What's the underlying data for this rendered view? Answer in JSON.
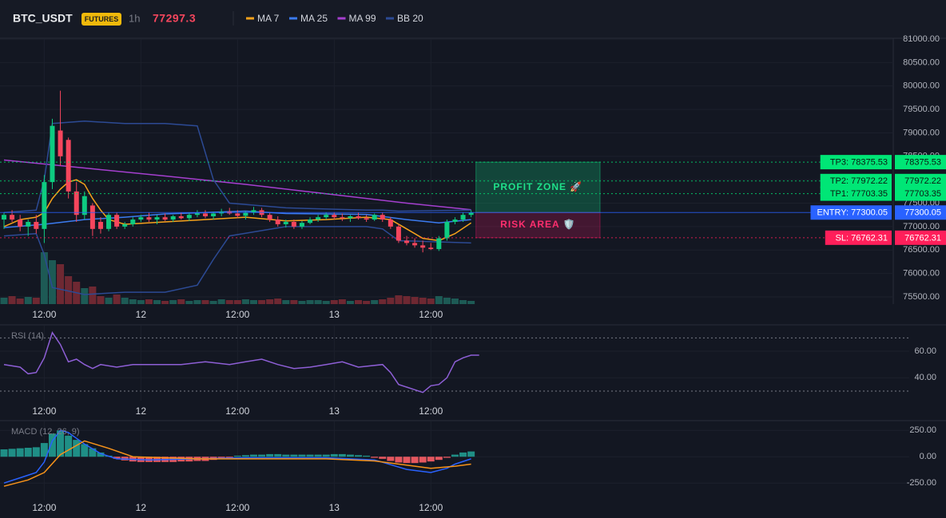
{
  "header": {
    "symbol": "BTC_USDT",
    "badge": "FUTURES",
    "interval": "1h",
    "price": 77297.3
  },
  "chart_data": [
    {
      "type": "candlestick",
      "open": [
        77150,
        77250,
        77150,
        77000,
        77100,
        76950,
        77950,
        79050,
        78850,
        77750,
        77250,
        77450,
        77100,
        76950,
        77250,
        77000,
        77050,
        77150,
        77200,
        77150,
        77200,
        77150,
        77220,
        77180,
        77250,
        77280,
        77220,
        77280,
        77320,
        77280,
        77230,
        77300,
        77350,
        77250,
        77150,
        77050,
        77100,
        77000,
        77080,
        77150,
        77200,
        77250,
        77200,
        77180,
        77220,
        77180,
        77150,
        77250,
        77150,
        77000,
        76700,
        76650,
        76600,
        76550,
        76520,
        76750,
        77100,
        77150,
        77250
      ],
      "high": [
        77300,
        77350,
        77250,
        77150,
        77250,
        78100,
        79300,
        79900,
        78900,
        77950,
        77750,
        77500,
        77200,
        77300,
        77300,
        77100,
        77200,
        77250,
        77300,
        77250,
        77280,
        77250,
        77300,
        77300,
        77350,
        77350,
        77320,
        77380,
        77400,
        77350,
        77330,
        77420,
        77400,
        77300,
        77220,
        77150,
        77150,
        77120,
        77200,
        77250,
        77300,
        77300,
        77280,
        77250,
        77300,
        77250,
        77280,
        77300,
        77200,
        77050,
        76800,
        76750,
        76700,
        76650,
        76800,
        77150,
        77200,
        77300,
        77350
      ],
      "low": [
        76950,
        77100,
        76900,
        76800,
        76850,
        76650,
        77800,
        78300,
        77600,
        77100,
        77150,
        76800,
        76850,
        76900,
        76950,
        76950,
        77000,
        77100,
        77100,
        77050,
        77120,
        77100,
        77150,
        77120,
        77200,
        77180,
        77150,
        77220,
        77250,
        77180,
        77150,
        77250,
        77200,
        77100,
        77000,
        76980,
        76950,
        76950,
        77050,
        77100,
        77150,
        77150,
        77120,
        77100,
        77150,
        77100,
        77120,
        77100,
        76950,
        76650,
        76600,
        76550,
        76450,
        76500,
        76480,
        76700,
        77050,
        77100,
        77200
      ],
      "close": [
        77250,
        77150,
        77000,
        77100,
        76950,
        77950,
        79150,
        78500,
        77750,
        77250,
        77650,
        76950,
        76950,
        77250,
        77000,
        77050,
        77150,
        77200,
        77150,
        77200,
        77150,
        77220,
        77180,
        77250,
        77280,
        77220,
        77280,
        77320,
        77280,
        77230,
        77300,
        77350,
        77250,
        77150,
        77050,
        77100,
        77000,
        77080,
        77150,
        77200,
        77250,
        77200,
        77180,
        77220,
        77180,
        77150,
        77250,
        77150,
        77000,
        76700,
        76650,
        76600,
        76550,
        76520,
        76750,
        77100,
        77150,
        77250,
        77297.3
      ],
      "volume": [
        8,
        10,
        7,
        9,
        8,
        65,
        55,
        50,
        35,
        28,
        20,
        22,
        10,
        8,
        12,
        8,
        6,
        5,
        6,
        5,
        4,
        5,
        6,
        4,
        5,
        5,
        4,
        6,
        5,
        5,
        6,
        5,
        5,
        6,
        7,
        5,
        5,
        4,
        5,
        5,
        4,
        5,
        6,
        4,
        5,
        4,
        5,
        6,
        8,
        11,
        10,
        9,
        8,
        7,
        10,
        8,
        7,
        5,
        4
      ],
      "colors": {
        "up": "#0ecb81",
        "down": "#f6465d",
        "volume_up": "#1d5a55",
        "volume_down": "#6e2832"
      },
      "series": [
        {
          "name": "MA 7",
          "color": "#f7a21b",
          "x": [
            0,
            2,
            4,
            5,
            6,
            7,
            8,
            9,
            10,
            11,
            12,
            13,
            15,
            20,
            25,
            30,
            35,
            40,
            45,
            48,
            50,
            52,
            54,
            56,
            58
          ],
          "values": [
            77000,
            77150,
            77200,
            77300,
            77600,
            77800,
            77950,
            78000,
            77900,
            77600,
            77350,
            77150,
            77050,
            77100,
            77150,
            77200,
            77120,
            77150,
            77200,
            77150,
            76950,
            76750,
            76700,
            76850,
            77080
          ]
        },
        {
          "name": "MA 25",
          "color": "#3b7bf0",
          "x": [
            0,
            5,
            10,
            15,
            20,
            25,
            30,
            35,
            40,
            45,
            50,
            54,
            58
          ],
          "values": [
            76980,
            77050,
            77150,
            77200,
            77270,
            77300,
            77330,
            77280,
            77270,
            77260,
            77150,
            77080,
            77150
          ]
        },
        {
          "name": "MA 99",
          "color": "#a53fcf",
          "x": [
            0,
            10,
            20,
            30,
            40,
            50,
            58
          ],
          "values": [
            78420,
            78250,
            78080,
            77900,
            77700,
            77500,
            77360
          ]
        },
        {
          "name": "BB 20",
          "color": "#2c4a94",
          "x": [
            0,
            4,
            5,
            6,
            10,
            15,
            20,
            24,
            26,
            28,
            35,
            45,
            47,
            49,
            58
          ],
          "values": [
            77300,
            77350,
            78000,
            79200,
            79250,
            79200,
            79200,
            79150,
            78000,
            77500,
            77400,
            77350,
            77350,
            77330,
            77350
          ],
          "lower": [
            76800,
            76850,
            76400,
            75700,
            75550,
            75600,
            75600,
            75750,
            76300,
            76800,
            77000,
            77000,
            76950,
            76700,
            76650
          ]
        }
      ],
      "levels": [
        {
          "label": "TP3: 78375.53",
          "value": 78375.53,
          "color": "#00e676",
          "dashed": true
        },
        {
          "label": "TP2: 77972.22",
          "value": 77972.22,
          "color": "#00e676",
          "dashed": true
        },
        {
          "label": "TP1: 77703.35",
          "value": 77703.35,
          "color": "#00e676",
          "dashed": true
        },
        {
          "label": "ENTRY: 77300.05",
          "value": 77300.05,
          "color": "#2962ff",
          "dashed": false
        },
        {
          "label": "SL: 76762.31",
          "value": 76762.31,
          "color": "#ff1f5a",
          "dashed": true
        }
      ],
      "zones": [
        {
          "label": "PROFIT ZONE 🚀",
          "color": "#13c27a",
          "text_color": "#1fe08a"
        },
        {
          "label": "RISK AREA 🛡️",
          "color": "#c2185b",
          "text_color": "#ff2e6e"
        }
      ],
      "ylim": [
        75346,
        81154
      ],
      "yticks": [
        {
          "value": 75500,
          "label": "75500.00"
        },
        {
          "value": 76000,
          "label": "76000.00"
        },
        {
          "value": 76500,
          "label": "76500.00"
        },
        {
          "value": 77000,
          "label": "77000.00"
        },
        {
          "value": 77500,
          "label": "77500.00"
        },
        {
          "value": 78000,
          "label": "78000.00"
        },
        {
          "value": 78500,
          "label": "78500.00"
        },
        {
          "value": 79000,
          "label": "79000.00"
        },
        {
          "value": 79500,
          "label": "79500.00"
        },
        {
          "value": 80000,
          "label": "80000.00"
        },
        {
          "value": 80500,
          "label": "80500.00"
        },
        {
          "value": 81000,
          "label": "81000.00"
        }
      ],
      "xticks": [
        {
          "value": 5,
          "label": "12:00"
        },
        {
          "value": 17,
          "label": "12"
        },
        {
          "value": 29,
          "label": "12:00"
        },
        {
          "value": 41,
          "label": "13"
        },
        {
          "value": 53,
          "label": "12:00"
        }
      ],
      "grid": true
    },
    {
      "type": "line",
      "title": "RSI (14)",
      "series": [
        {
          "color": "#8e5fd6",
          "x": [
            0,
            2,
            3,
            4,
            5,
            6,
            7,
            8,
            9,
            10,
            11,
            12,
            14,
            16,
            18,
            20,
            22,
            25,
            28,
            30,
            32,
            34,
            36,
            38,
            40,
            42,
            44,
            47,
            48,
            49,
            50,
            51,
            52,
            53,
            54,
            55,
            56,
            57,
            58,
            59
          ],
          "values": [
            50,
            48,
            43,
            44,
            55,
            74,
            65,
            52,
            54,
            50,
            47,
            50,
            48,
            50,
            50,
            50,
            50,
            52,
            50,
            52,
            54,
            50,
            47,
            48,
            50,
            52,
            48,
            50,
            44,
            35,
            33,
            31,
            29,
            34,
            35,
            40,
            52,
            55,
            57,
            57
          ]
        }
      ],
      "bands": [
        30,
        70
      ],
      "ylim": [
        24,
        78
      ],
      "yticks": [
        {
          "value": 40,
          "label": "40.00"
        },
        {
          "value": 60,
          "label": "60.00"
        }
      ],
      "xticks": [
        {
          "value": 5,
          "label": "12:00"
        },
        {
          "value": 17,
          "label": "12"
        },
        {
          "value": 29,
          "label": "12:00"
        },
        {
          "value": 41,
          "label": "13"
        },
        {
          "value": 53,
          "label": "12:00"
        }
      ],
      "grid": true
    },
    {
      "type": "macd",
      "title": "MACD (12, 26, 9)",
      "hist": [
        70,
        75,
        80,
        85,
        90,
        130,
        220,
        250,
        200,
        160,
        120,
        80,
        40,
        10,
        -20,
        -35,
        -45,
        -50,
        -50,
        -50,
        -50,
        -50,
        -45,
        -45,
        -40,
        -40,
        -30,
        -20,
        -10,
        10,
        15,
        20,
        20,
        25,
        25,
        20,
        20,
        20,
        20,
        20,
        20,
        25,
        25,
        20,
        15,
        10,
        -10,
        -20,
        -40,
        -55,
        -60,
        -60,
        -55,
        -45,
        -30,
        -10,
        20,
        40,
        50
      ],
      "hist_colors": {
        "up": "#1f8f86",
        "down": "#e5575f"
      },
      "series": [
        {
          "color": "#2962ff",
          "x": [
            0,
            2,
            4,
            5,
            6,
            7,
            8,
            10,
            12,
            14,
            18,
            24,
            30,
            40,
            46,
            50,
            53,
            55,
            56,
            58
          ],
          "values": [
            -250,
            -200,
            -150,
            -50,
            150,
            250,
            230,
            120,
            30,
            -20,
            -30,
            -20,
            -10,
            -10,
            -30,
            -120,
            -150,
            -110,
            -70,
            -20
          ]
        },
        {
          "color": "#f7931a",
          "x": [
            0,
            3,
            5,
            7,
            10,
            13,
            16,
            24,
            40,
            46,
            50,
            53,
            56,
            58
          ],
          "values": [
            -280,
            -220,
            -150,
            20,
            150,
            80,
            0,
            -20,
            -20,
            -40,
            -80,
            -110,
            -90,
            -70
          ]
        }
      ],
      "ylim": [
        -400,
        320
      ],
      "yticks": [
        {
          "value": -250,
          "label": "-250.00"
        },
        {
          "value": 0,
          "label": "0.00"
        },
        {
          "value": 250,
          "label": "250.00"
        }
      ],
      "xticks": [
        {
          "value": 5,
          "label": "12:00"
        },
        {
          "value": 17,
          "label": "12"
        },
        {
          "value": 29,
          "label": "12:00"
        },
        {
          "value": 41,
          "label": "13"
        },
        {
          "value": 53,
          "label": "12:00"
        }
      ],
      "grid": true
    }
  ]
}
